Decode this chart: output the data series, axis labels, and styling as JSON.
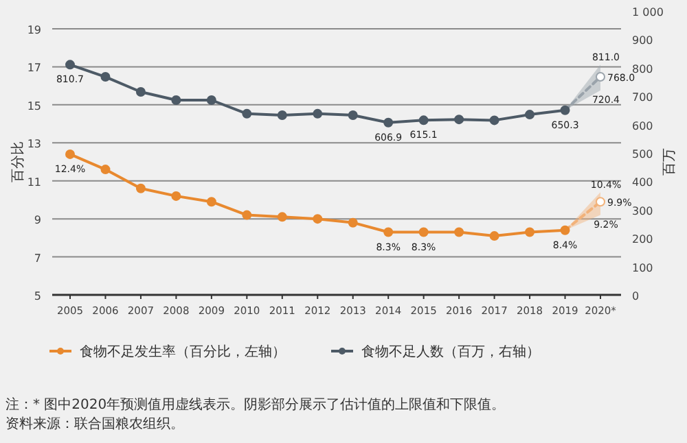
{
  "chart_data": {
    "type": "line",
    "categories": [
      "2005",
      "2006",
      "2007",
      "2008",
      "2009",
      "2010",
      "2011",
      "2012",
      "2013",
      "2014",
      "2015",
      "2016",
      "2017",
      "2018",
      "2019",
      "2020*"
    ],
    "ylabel": "百分比",
    "y2label": "百万",
    "ylim": [
      5,
      19
    ],
    "yticks": [
      5,
      7,
      9,
      11,
      13,
      15,
      17,
      19
    ],
    "y2lim": [
      0,
      1000
    ],
    "y2ticks": [
      0,
      100,
      200,
      300,
      400,
      500,
      600,
      700,
      800,
      900,
      {
        "value": 1000,
        "label": "1 000"
      }
    ],
    "grid": "y",
    "legend": "bottom",
    "marker": "circle",
    "series": [
      {
        "name": "食物不足发生率（百分比，左轴）",
        "color": "#e8892f",
        "values": [
          12.4,
          11.6,
          10.6,
          10.2,
          9.9,
          9.2,
          9.1,
          9.0,
          8.8,
          8.3,
          8.3,
          8.3,
          8.1,
          8.3,
          8.4,
          null
        ],
        "value_labels": [
          "12.4%",
          null,
          null,
          null,
          null,
          null,
          null,
          null,
          null,
          "8.3%",
          "8.3%",
          null,
          null,
          null,
          "8.4%",
          null
        ]
      },
      {
        "color": "#f2b27a",
        "line_style": "dashed",
        "values": [
          null,
          null,
          null,
          null,
          null,
          null,
          null,
          null,
          null,
          null,
          null,
          null,
          null,
          null,
          8.4,
          9.9
        ],
        "lower": [
          null,
          null,
          null,
          null,
          null,
          null,
          null,
          null,
          null,
          null,
          null,
          null,
          null,
          null,
          8.4,
          9.2
        ],
        "upper": [
          null,
          null,
          null,
          null,
          null,
          null,
          null,
          null,
          null,
          null,
          null,
          null,
          null,
          null,
          8.4,
          10.4
        ],
        "value_labels": [
          null,
          null,
          null,
          null,
          null,
          null,
          null,
          null,
          null,
          null,
          null,
          null,
          null,
          null,
          null,
          "9.9%"
        ]
      },
      {
        "name": "食物不足人数（百万，右轴）",
        "color": "#4d5a66",
        "axis": "y2",
        "values": [
          810.7,
          768,
          715,
          686,
          686,
          638,
          633,
          638,
          633,
          606.9,
          615.1,
          618,
          615,
          635,
          650.3,
          null
        ],
        "value_labels": [
          "810.7",
          null,
          null,
          null,
          null,
          null,
          null,
          null,
          null,
          "606.9",
          "615.1",
          null,
          null,
          null,
          "650.3",
          null
        ]
      },
      {
        "color": "#9aa3ab",
        "axis": "y2",
        "line_style": "dashed",
        "values": [
          null,
          null,
          null,
          null,
          null,
          null,
          null,
          null,
          null,
          null,
          null,
          null,
          null,
          null,
          650.3,
          768.0
        ],
        "lower": [
          null,
          null,
          null,
          null,
          null,
          null,
          null,
          null,
          null,
          null,
          null,
          null,
          null,
          null,
          650.3,
          720.4
        ],
        "upper": [
          null,
          null,
          null,
          null,
          null,
          null,
          null,
          null,
          null,
          null,
          null,
          null,
          null,
          null,
          650.3,
          811.0
        ],
        "value_labels": [
          null,
          null,
          null,
          null,
          null,
          null,
          null,
          null,
          null,
          null,
          null,
          null,
          null,
          null,
          null,
          "768.0"
        ]
      }
    ],
    "annotations": [
      {
        "text": "10.4%",
        "x": "2020*",
        "y": 10.4
      },
      {
        "text": "9.2%",
        "x": "2020*",
        "y": 9.2
      },
      "811.0",
      "720.4",
      "注：* 图中2020年预测值用虚线表示。阴影部分展示了估计值的上限值和下限值。",
      "资料来源：联合国粮农组织。"
    ]
  }
}
